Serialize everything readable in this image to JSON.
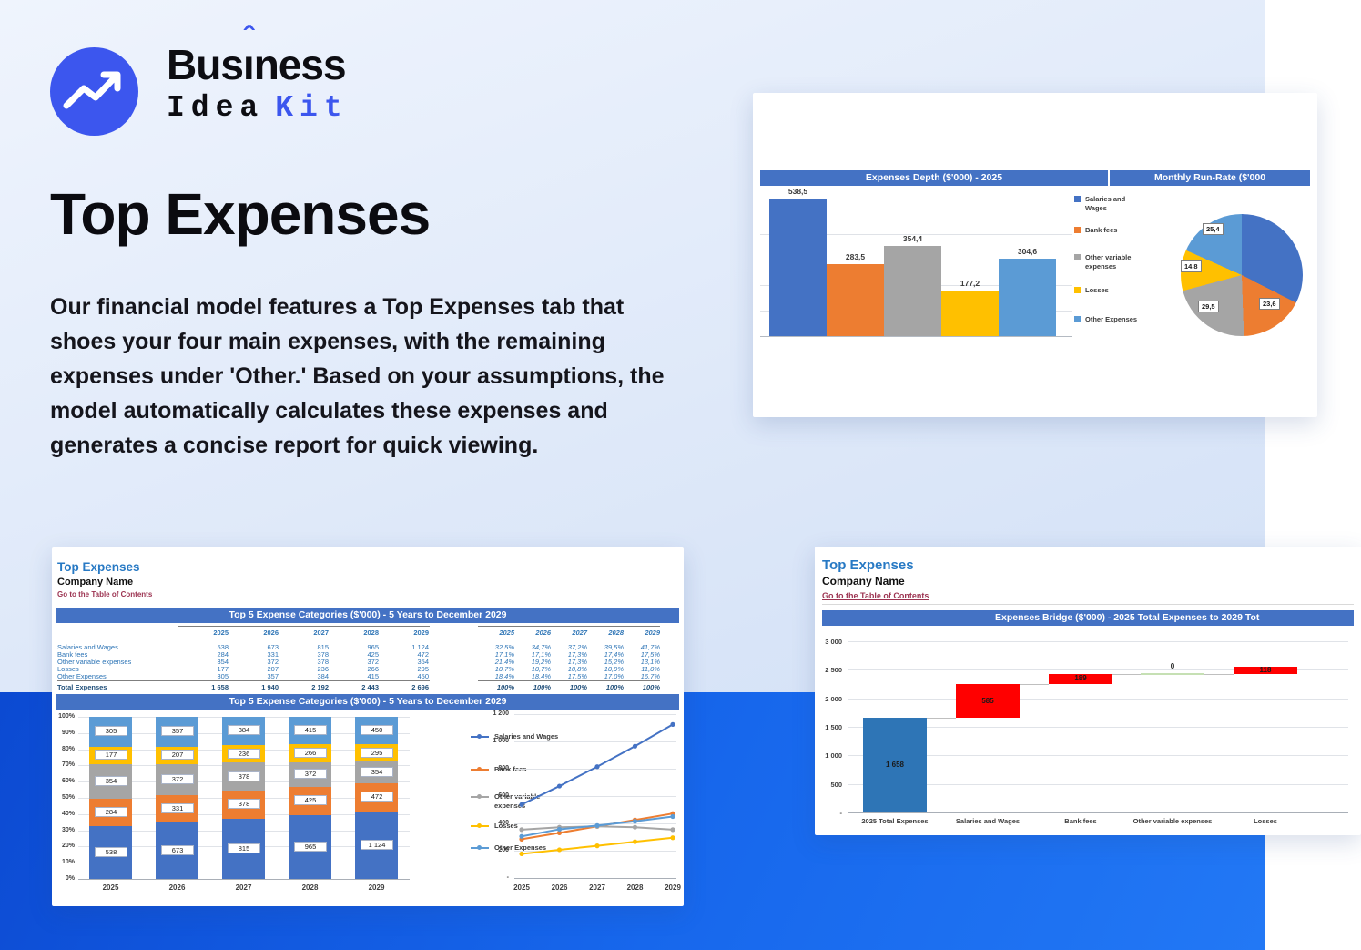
{
  "logo": {
    "brand_top_pre": "Bus",
    "brand_top_i": "ı",
    "brand_top_hat": "ˆ",
    "brand_top_post": "ness",
    "brand_bottom_word": "Idea",
    "brand_bottom_accent": "Kit"
  },
  "hero": {
    "title": "Top Expenses",
    "paragraph": "Our financial model features a Top Expenses tab that shoes your four main expenses, with the remaining expenses under 'Other.' Based on your assumptions, the model automatically calculates these expenses and generates a concise report for quick viewing."
  },
  "palette": {
    "accent": "#3c56ee",
    "excel_band": "#4472c4",
    "series_blue": "#4472c4",
    "series_orange": "#ed7d31",
    "series_gray": "#a5a5a5",
    "series_yellow": "#ffc000",
    "series_lightblue": "#5b9bd5",
    "waterfall_total": "#2e75b6",
    "waterfall_up": "#ff0000",
    "waterfall_zero": "#c6e0b4",
    "link": "#9c3351",
    "sheet_title_blue": "#2779c4",
    "table_blue": "#2e75b6",
    "table_total_blue": "#1f4e79"
  },
  "sheet1": {
    "title": "Top Expenses",
    "company": "Company Name",
    "link": "Go to the Table of Contents",
    "band": "Top 5 Expense Categories ($'000) - 5 Years to December 2029",
    "years": [
      "2025",
      "2026",
      "2027",
      "2028",
      "2029"
    ],
    "rows": [
      {
        "label": "Salaries and Wages",
        "values": [
          "538",
          "673",
          "815",
          "965",
          "1 124"
        ],
        "pct": [
          "32,5%",
          "34,7%",
          "37,2%",
          "39,5%",
          "41,7%"
        ]
      },
      {
        "label": "Bank fees",
        "values": [
          "284",
          "331",
          "378",
          "425",
          "472"
        ],
        "pct": [
          "17,1%",
          "17,1%",
          "17,3%",
          "17,4%",
          "17,5%"
        ]
      },
      {
        "label": "Other variable expenses",
        "values": [
          "354",
          "372",
          "378",
          "372",
          "354"
        ],
        "pct": [
          "21,4%",
          "19,2%",
          "17,3%",
          "15,2%",
          "13,1%"
        ]
      },
      {
        "label": "Losses",
        "values": [
          "177",
          "207",
          "236",
          "266",
          "295"
        ],
        "pct": [
          "10,7%",
          "10,7%",
          "10,8%",
          "10,9%",
          "11,0%"
        ]
      },
      {
        "label": "Other Expenses",
        "values": [
          "305",
          "357",
          "384",
          "415",
          "450"
        ],
        "pct": [
          "18,4%",
          "18,4%",
          "17,5%",
          "17,0%",
          "16,7%"
        ]
      }
    ],
    "total": {
      "label": "Total Expenses",
      "values": [
        "1 658",
        "1 940",
        "2 192",
        "2 443",
        "2 696"
      ],
      "pct": [
        "100%",
        "100%",
        "100%",
        "100%",
        "100%"
      ]
    }
  },
  "sheet2": {
    "title": "Top Expenses",
    "company": "Company Name",
    "link": "Go to the Table of Contents",
    "band": "Expenses Bridge ($'000) - 2025 Total Expenses to 2029 Tot"
  },
  "chart_data": [
    {
      "id": "expenses-depth",
      "type": "bar",
      "title": "Expenses Depth ($'000) - 2025",
      "categories": [
        "Salaries and Wages",
        "Bank fees",
        "Other variable expenses",
        "Losses",
        "Other Expenses"
      ],
      "values": [
        538.5,
        283.5,
        354.4,
        177.2,
        304.6
      ],
      "labels": [
        "538,5",
        "283,5",
        "354,4",
        "177,2",
        "304,6"
      ],
      "ylim": [
        0,
        560
      ],
      "grid_step": 100,
      "legend_position": "right"
    },
    {
      "id": "monthly-run-rate",
      "type": "pie",
      "title": "Monthly Run-Rate ($'000",
      "slices": [
        {
          "name": "Salaries and Wages",
          "deg": 117,
          "label": ""
        },
        {
          "name": "Bank fees",
          "deg": 61,
          "label": "23,6"
        },
        {
          "name": "Other variable expenses",
          "deg": 77,
          "label": "29,5"
        },
        {
          "name": "Losses",
          "deg": 39,
          "label": "14,8"
        },
        {
          "name": "Other Expenses",
          "deg": 66,
          "label": "25,4"
        }
      ]
    },
    {
      "id": "top5-stacked",
      "type": "bar-stacked-100",
      "title": "Top 5 Expense Categories ($'000) - 5 Years to December 2029",
      "categories": [
        "2025",
        "2026",
        "2027",
        "2028",
        "2029"
      ],
      "y_ticks": [
        "100%",
        "90%",
        "80%",
        "70%",
        "60%",
        "50%",
        "40%",
        "30%",
        "20%",
        "10%",
        "0%"
      ],
      "series": [
        {
          "name": "Salaries and Wages",
          "pcts": [
            32.5,
            34.7,
            37.2,
            39.5,
            41.7
          ]
        },
        {
          "name": "Bank fees",
          "pcts": [
            17.1,
            17.1,
            17.3,
            17.4,
            17.5
          ]
        },
        {
          "name": "Other variable expenses",
          "pcts": [
            21.4,
            19.2,
            17.3,
            15.2,
            13.1
          ]
        },
        {
          "name": "Losses",
          "pcts": [
            10.7,
            10.7,
            10.8,
            10.9,
            11.0
          ]
        },
        {
          "name": "Other Expenses",
          "pcts": [
            18.4,
            18.4,
            17.5,
            17.0,
            16.7
          ]
        }
      ]
    },
    {
      "id": "top5-lines",
      "type": "line",
      "categories": [
        "2025",
        "2026",
        "2027",
        "2028",
        "2029"
      ],
      "y_ticks": [
        "1 200",
        "1 000",
        "800",
        "600",
        "400",
        "200",
        "-"
      ],
      "ylim": [
        0,
        1200
      ],
      "series": [
        {
          "name": "Salaries and Wages",
          "values": [
            538,
            673,
            815,
            965,
            1124
          ]
        },
        {
          "name": "Bank fees",
          "values": [
            284,
            331,
            378,
            425,
            472
          ]
        },
        {
          "name": "Other variable expenses",
          "values": [
            354,
            372,
            378,
            372,
            354
          ]
        },
        {
          "name": "Losses",
          "values": [
            177,
            207,
            236,
            266,
            295
          ]
        },
        {
          "name": "Other Expenses",
          "values": [
            305,
            357,
            384,
            415,
            450
          ]
        }
      ]
    },
    {
      "id": "expenses-bridge",
      "type": "waterfall",
      "title": "Expenses Bridge ($'000) - 2025 Total Expenses to 2029 Tot",
      "y_ticks": [
        "3 000",
        "2 500",
        "2 000",
        "1 500",
        "1 000",
        "500",
        "-"
      ],
      "ylim": [
        0,
        3000
      ],
      "categories": [
        "2025 Total Expenses",
        "Salaries and Wages",
        "Bank fees",
        "Other variable expenses",
        "Losses"
      ],
      "steps": [
        {
          "label": "1 658",
          "from": 0,
          "to": 1658,
          "kind": "total"
        },
        {
          "label": "585",
          "from": 1658,
          "to": 2243,
          "kind": "up"
        },
        {
          "label": "189",
          "from": 2243,
          "to": 2432,
          "kind": "up"
        },
        {
          "label": "0",
          "from": 2432,
          "to": 2432,
          "kind": "zero"
        },
        {
          "label": "118",
          "from": 2432,
          "to": 2550,
          "kind": "up"
        }
      ]
    }
  ]
}
